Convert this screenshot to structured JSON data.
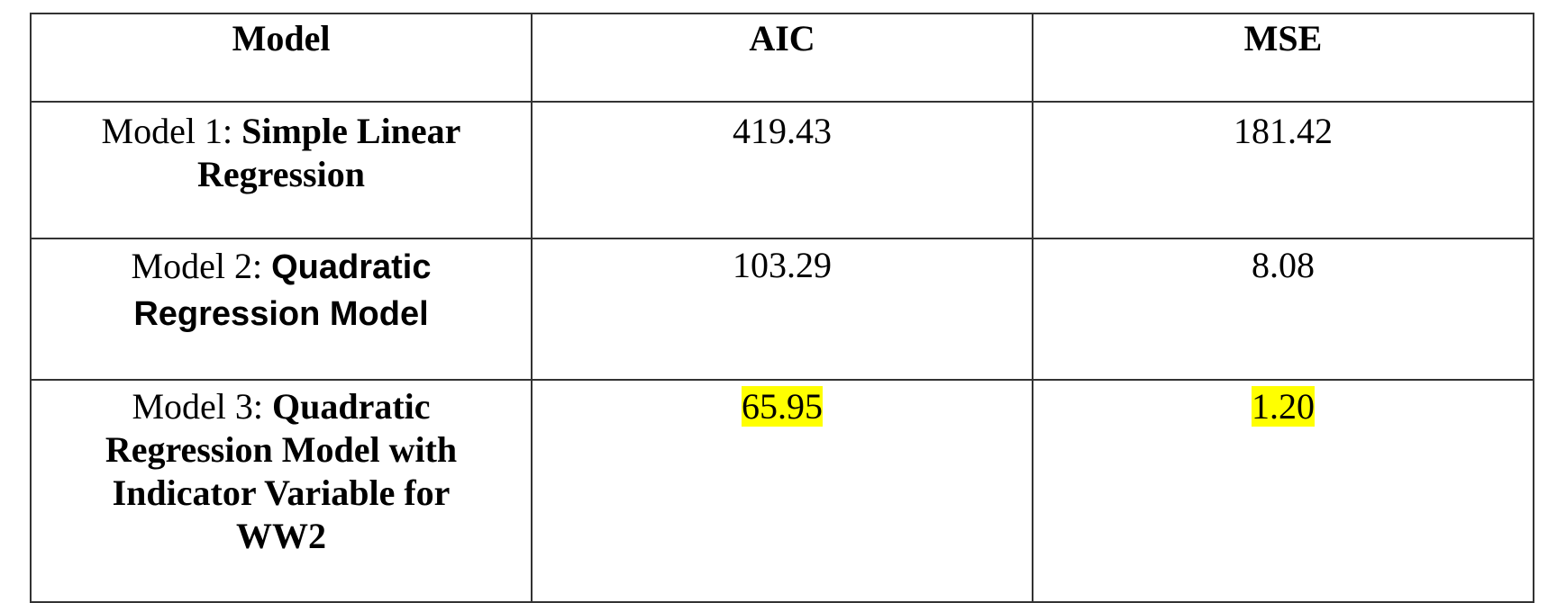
{
  "table": {
    "headers": [
      "Model",
      "AIC",
      "MSE"
    ],
    "rows": [
      {
        "model_prefix": "Model 1: ",
        "model_name": "Simple Linear Regression",
        "aic": "419.43",
        "mse": "181.42",
        "highlighted": false
      },
      {
        "model_prefix": "Model 2: ",
        "model_name": "Quadratic Regression Model",
        "aic": "103.29",
        "mse": "8.08",
        "highlighted": false
      },
      {
        "model_prefix": "Model 3: ",
        "model_name": "Quadratic Regression Model with Indicator Variable for WW2",
        "aic": "65.95",
        "mse": "1.20",
        "highlighted": true
      }
    ],
    "highlight_color": "#ffff00",
    "border_color": "#333333"
  }
}
